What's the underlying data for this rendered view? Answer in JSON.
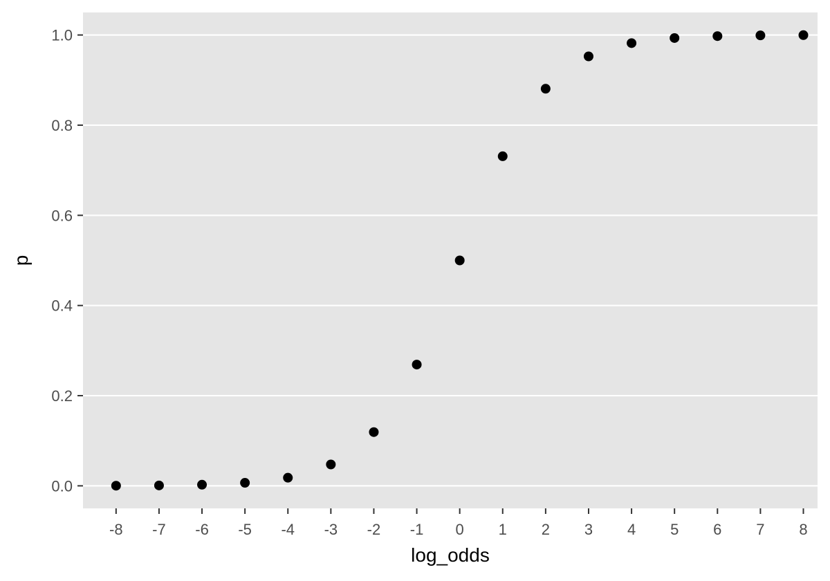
{
  "chart_data": {
    "type": "scatter",
    "xlabel": "log_odds",
    "ylabel": "p",
    "x": [
      -8,
      -7,
      -6,
      -5,
      -4,
      -3,
      -2,
      -1,
      0,
      1,
      2,
      3,
      4,
      5,
      6,
      7,
      8
    ],
    "y": [
      0.000335,
      0.000911,
      0.002473,
      0.006693,
      0.017986,
      0.047426,
      0.119203,
      0.268941,
      0.5,
      0.731059,
      0.880797,
      0.952574,
      0.982014,
      0.993307,
      0.997527,
      0.999089,
      0.999665
    ],
    "xlim": [
      -8.77,
      8.33
    ],
    "ylim": [
      -0.05,
      1.05
    ],
    "x_ticks": [
      -8,
      -7,
      -6,
      -5,
      -4,
      -3,
      -2,
      -1,
      0,
      1,
      2,
      3,
      4,
      5,
      6,
      7,
      8
    ],
    "x_tick_labels": [
      "-8",
      "-7",
      "-6",
      "-5",
      "-4",
      "-3",
      "-2",
      "-1",
      "0",
      "1",
      "2",
      "3",
      "4",
      "5",
      "6",
      "7",
      "8"
    ],
    "y_ticks": [
      0,
      0.2,
      0.4,
      0.6,
      0.8,
      1
    ],
    "y_tick_labels": [
      "0.0",
      "0.2",
      "0.4",
      "0.6",
      "0.8",
      "1.0"
    ],
    "grid": true,
    "legend": "none",
    "colors": {
      "panel_background": "#e5e5e5",
      "grid_major": "#ffffff",
      "point": "#000000",
      "tick_text": "#4d4d4d",
      "tick_mark": "#333333"
    }
  }
}
